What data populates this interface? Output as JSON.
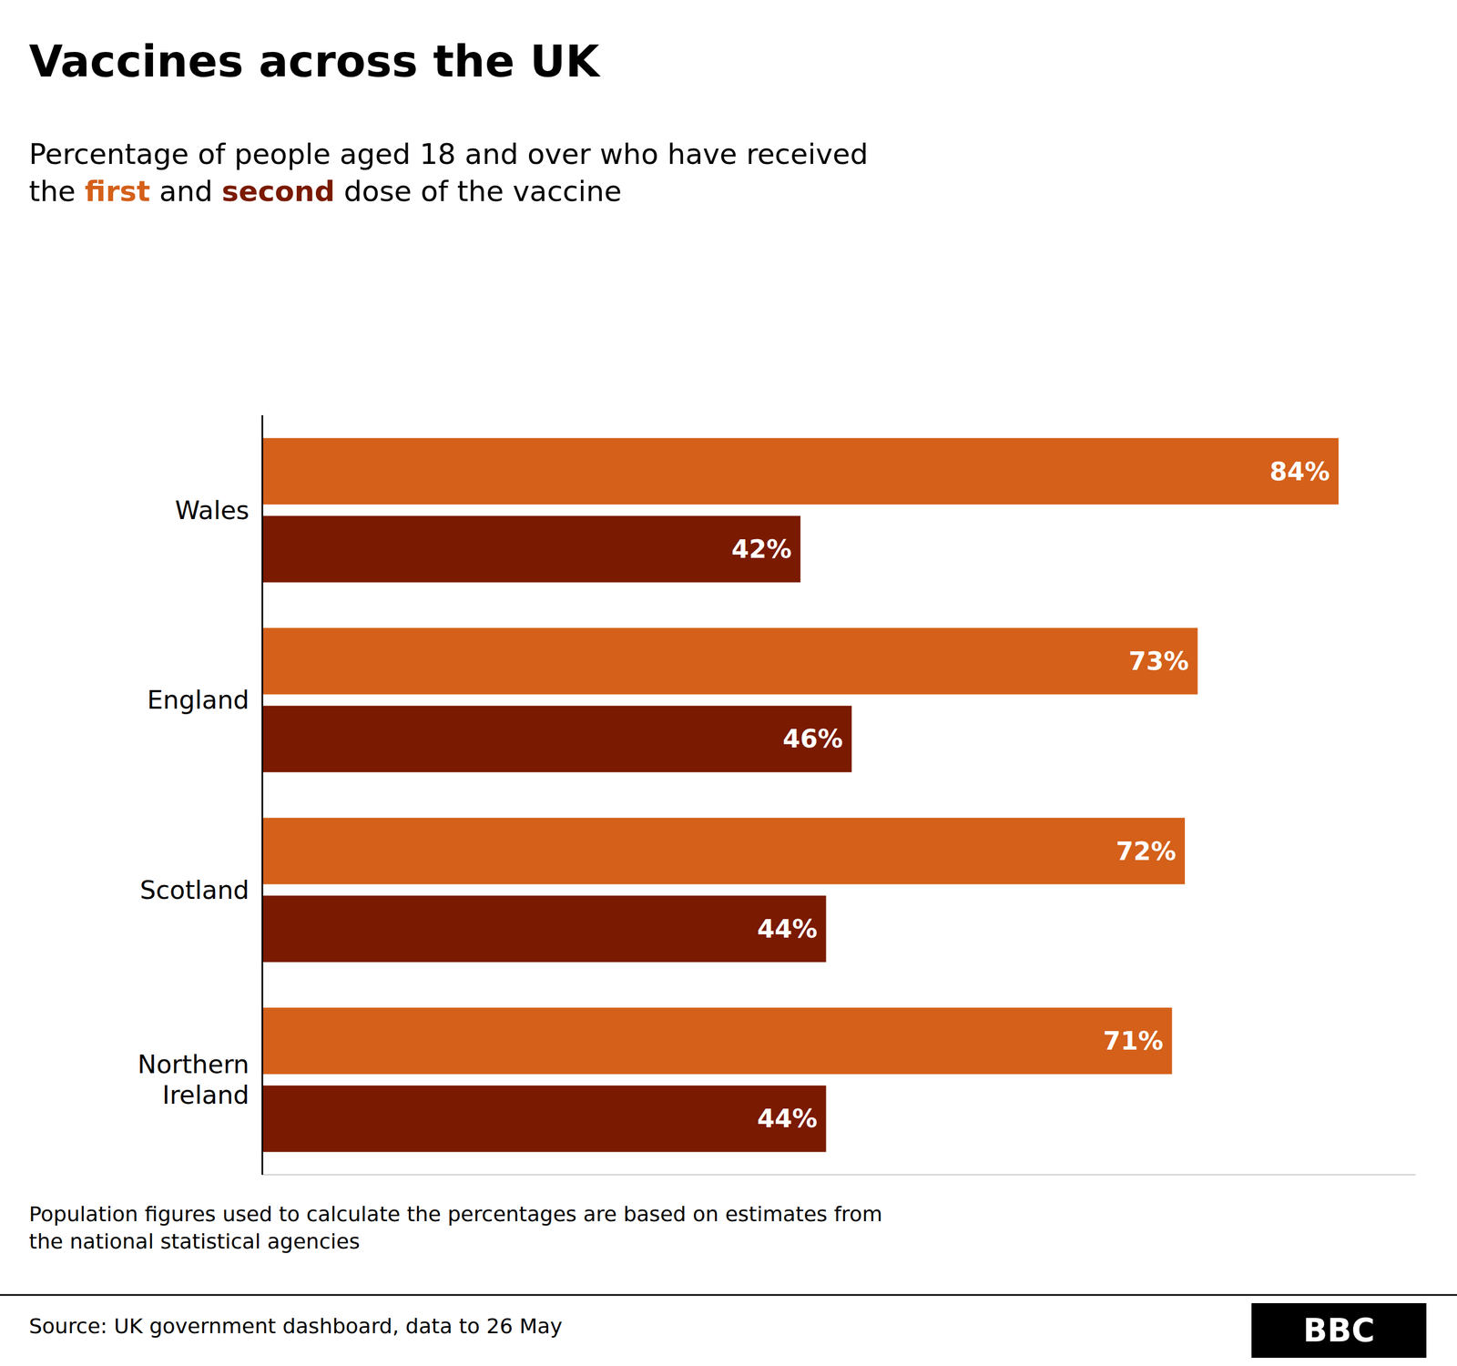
{
  "chart_data": {
    "type": "bar",
    "orientation": "horizontal",
    "title": "Vaccines across the UK",
    "subtitle": [
      "Percentage of people aged 18 and over who have received",
      "the first and second dose of the vaccine"
    ],
    "categories": [
      "Wales",
      "England",
      "Scotland",
      "Northern\nIreland"
    ],
    "series": [
      {
        "name": "first",
        "color": "#d4601a",
        "values": [
          84,
          73,
          72,
          71
        ],
        "value_labels": [
          "84%",
          "73%",
          "72%",
          "71%"
        ]
      },
      {
        "name": "second",
        "color": "#7a1a00",
        "values": [
          42,
          46,
          44,
          44
        ],
        "value_labels": [
          "42%",
          "46%",
          "44%",
          "44%"
        ]
      }
    ],
    "xlim": [
      0,
      90
    ],
    "grid": false,
    "data_labels": true,
    "tick_labels": "y",
    "annotations": [
      "Population figures used to calculate the percentages are based on estimates from",
      "the national statistical agencies"
    ],
    "source": "Source: UK government dashboard, data to 26 May",
    "logo": "BBC"
  }
}
